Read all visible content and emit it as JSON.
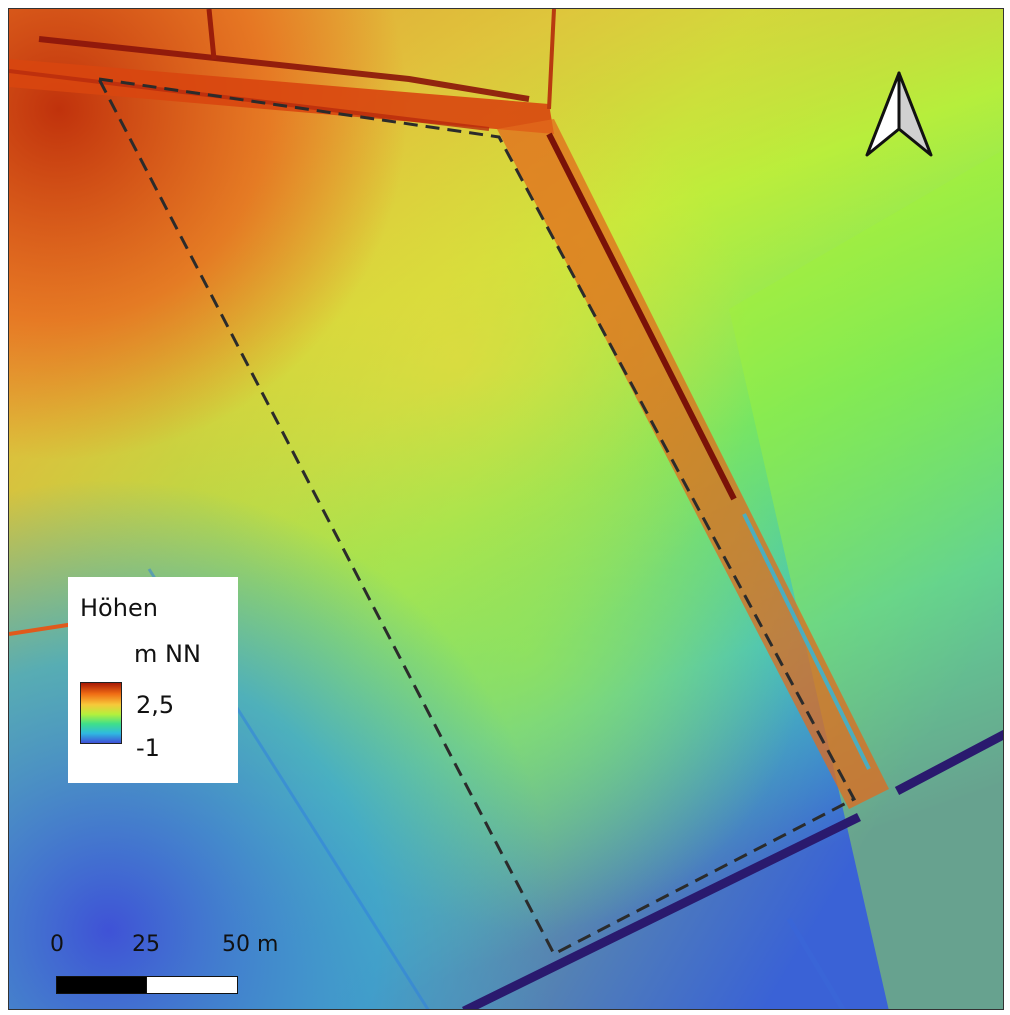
{
  "legend": {
    "title": "Höhen",
    "unit": "m NN",
    "max_label": "2,5",
    "min_label": "-1",
    "color_ramp": [
      "#a81a05",
      "#f06c14",
      "#f7c83a",
      "#b5f03c",
      "#3fe08a",
      "#2fb9e0",
      "#3f50d8"
    ]
  },
  "scale_bar": {
    "labels": [
      "0",
      "25",
      "50 m"
    ],
    "segment_colors": [
      "#000000",
      "#ffffff"
    ]
  },
  "north_arrow": {
    "icon": "north-arrow-icon"
  },
  "map": {
    "colors": {
      "high": "#c5310e",
      "mid_high": "#f59a3a",
      "mid": "#c8ee3a",
      "low": "#2fb9e0",
      "lowest": "#3a5cd8",
      "boundary": "#2b2b2b",
      "ditch_dark": "#6a0b08",
      "ditch_blue": "#2a1a6e"
    }
  }
}
